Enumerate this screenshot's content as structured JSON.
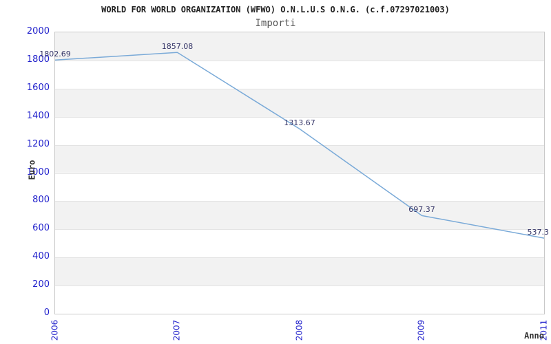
{
  "chart_data": {
    "type": "line",
    "title": "WORLD FOR WORLD ORGANIZATION (WFWO) O.N.L.U.S O.N.G. (c.f.07297021003)",
    "subtitle": "Importi",
    "xlabel": "Anno",
    "ylabel": "Euro",
    "categories": [
      "2006",
      "2007",
      "2008",
      "2009",
      "2011"
    ],
    "series": [
      {
        "name": "Importi",
        "values": [
          1802.69,
          1857.08,
          1313.67,
          697.37,
          537.3
        ]
      }
    ],
    "point_labels": [
      "1802.69",
      "1857.08",
      "1313.67",
      "697.37",
      "537.3"
    ],
    "ylim": [
      0,
      2000
    ],
    "ytick_step": 200,
    "ytick_labels": [
      "2000",
      "1800",
      "1600",
      "1400",
      "1200",
      "1000",
      "800",
      "600",
      "400",
      "200",
      "0"
    ],
    "grid": "alternating-horizontal-bands",
    "legend": "none"
  },
  "colors": {
    "line": "#7aaad8",
    "band_gray": "#f2f2f2",
    "band_white": "#ffffff",
    "gridline": "#e3e3e3",
    "plot_border": "#c9c9c9",
    "tick_label": "#2222cc",
    "data_label": "#333366",
    "title": "#222222",
    "subtitle": "#555555",
    "axis_label": "#333333"
  }
}
